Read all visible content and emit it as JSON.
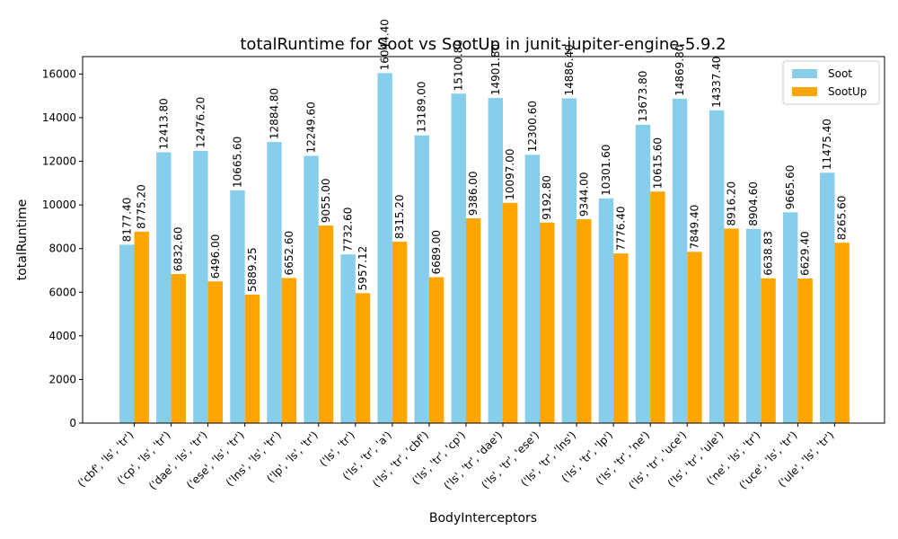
{
  "chart_data": {
    "type": "bar",
    "title": "totalRuntime for Soot vs SootUp in junit-jupiter-engine-5.9.2",
    "xlabel": "BodyInterceptors",
    "ylabel": "totalRuntime",
    "ylim": [
      0,
      16800
    ],
    "yticks": [
      0,
      2000,
      4000,
      6000,
      8000,
      10000,
      12000,
      14000,
      16000
    ],
    "ytick_labels": [
      "0",
      "2000",
      "4000",
      "6000",
      "8000",
      "10000",
      "12000",
      "14000",
      "16000"
    ],
    "grid": false,
    "legend_position": "top-right",
    "categories": [
      "('cbf', 'ls', 'tr')",
      "('cp', 'ls', 'tr')",
      "('dae', 'ls', 'tr')",
      "('ese', 'ls', 'tr')",
      "('lns', 'ls', 'tr')",
      "('lp', 'ls', 'tr')",
      "('ls', 'tr')",
      "('ls', 'tr', 'a')",
      "('ls', 'tr', 'cbf')",
      "('ls', 'tr', 'cp')",
      "('ls', 'tr', 'dae')",
      "('ls', 'tr', 'ese')",
      "('ls', 'tr', 'lns')",
      "('ls', 'tr', 'lp')",
      "('ls', 'tr', 'ne')",
      "('ls', 'tr', 'uce')",
      "('ls', 'tr', 'ule')",
      "('ne', 'ls', 'tr')",
      "('uce', 'ls', 'tr')",
      "('ule', 'ls', 'tr')"
    ],
    "series": [
      {
        "name": "Soot",
        "color": "#87CEEB",
        "values": [
          8177.4,
          12413.8,
          12476.2,
          10665.6,
          12884.8,
          12249.6,
          7732.6,
          16044.4,
          13189.0,
          15100.8,
          14901.8,
          12300.6,
          14886.4,
          10301.6,
          13673.8,
          14869.8,
          14337.4,
          8904.6,
          9665.6,
          11475.4
        ],
        "labels": [
          "8177.40",
          "12413.80",
          "12476.20",
          "10665.60",
          "12884.80",
          "12249.60",
          "7732.60",
          "16044.40",
          "13189.00",
          "15100.80",
          "14901.80",
          "12300.60",
          "14886.40",
          "10301.60",
          "13673.80",
          "14869.80",
          "14337.40",
          "8904.60",
          "9665.60",
          "11475.40"
        ]
      },
      {
        "name": "SootUp",
        "color": "#FFA500",
        "values": [
          8775.2,
          6832.6,
          6496.0,
          5889.25,
          6652.6,
          9055.0,
          5957.12,
          8315.2,
          6689.0,
          9386.0,
          10097.0,
          9192.8,
          9344.0,
          7776.4,
          10615.6,
          7849.4,
          8916.2,
          6638.83,
          6629.4,
          8265.6
        ],
        "labels": [
          "8775.20",
          "6832.60",
          "6496.00",
          "5889.25",
          "6652.60",
          "9055.00",
          "5957.12",
          "8315.20",
          "6689.00",
          "9386.00",
          "10097.00",
          "9192.80",
          "9344.00",
          "7776.40",
          "10615.60",
          "7849.40",
          "8916.20",
          "6638.83",
          "6629.40",
          "8265.60"
        ]
      }
    ]
  }
}
